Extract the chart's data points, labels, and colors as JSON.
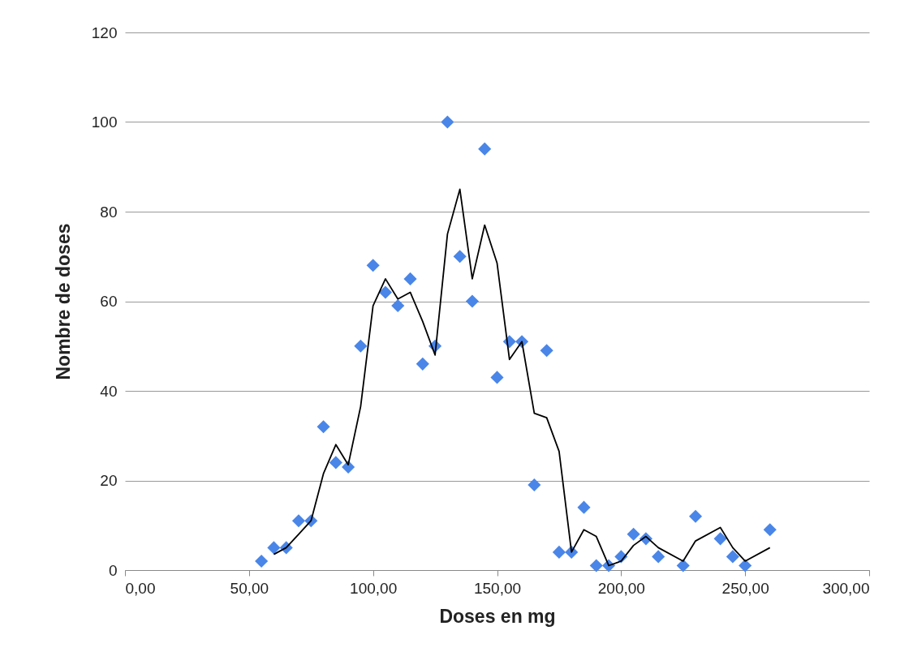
{
  "chart_data": {
    "type": "scatter",
    "xlabel": "Doses en mg",
    "ylabel": "Nombre de doses",
    "xlim": [
      0,
      300
    ],
    "ylim": [
      0,
      120
    ],
    "xticks": [
      {
        "value": 0,
        "label": "0,00"
      },
      {
        "value": 50,
        "label": "50,00"
      },
      {
        "value": 100,
        "label": "100,00"
      },
      {
        "value": 150,
        "label": "150,00"
      },
      {
        "value": 200,
        "label": "200,00"
      },
      {
        "value": 250,
        "label": "250,00"
      },
      {
        "value": 300,
        "label": "300,00"
      }
    ],
    "yticks": [
      0,
      20,
      40,
      60,
      80,
      100,
      120
    ],
    "grid": "y",
    "series": [
      {
        "color": "#4a86e8",
        "marker": "diamond",
        "x": [
          55,
          60,
          65,
          70,
          75,
          80,
          85,
          90,
          95,
          100,
          105,
          110,
          115,
          120,
          125,
          130,
          135,
          140,
          145,
          150,
          155,
          160,
          165,
          170,
          175,
          180,
          185,
          190,
          195,
          200,
          205,
          210,
          215,
          225,
          230,
          240,
          245,
          250,
          260
        ],
        "values": [
          2,
          5,
          5,
          11,
          11,
          32,
          24,
          23,
          50,
          68,
          62,
          59,
          65,
          46,
          50,
          100,
          70,
          60,
          94,
          43,
          51,
          51,
          19,
          49,
          4,
          4,
          14,
          1,
          1,
          3,
          8,
          7,
          3,
          1,
          12,
          7,
          3,
          1,
          9
        ]
      },
      {
        "type": "line",
        "color": "#000000",
        "x": [
          60,
          65,
          70,
          75,
          80,
          85,
          90,
          95,
          100,
          105,
          110,
          115,
          120,
          125,
          130,
          135,
          140,
          145,
          150,
          155,
          160,
          165,
          170,
          175,
          180,
          185,
          190,
          195,
          200,
          205,
          210,
          215,
          225,
          230,
          240,
          245,
          250,
          260
        ],
        "values": [
          3.5,
          5,
          8,
          11,
          21.5,
          28,
          23.5,
          36.5,
          59,
          65,
          60.5,
          62,
          55.5,
          48,
          75,
          85,
          65,
          77,
          68.5,
          47,
          51,
          35,
          34,
          26.5,
          4,
          9,
          7.5,
          1,
          2,
          5.5,
          7.5,
          5,
          2,
          6.5,
          9.5,
          5,
          2,
          5
        ]
      }
    ]
  }
}
